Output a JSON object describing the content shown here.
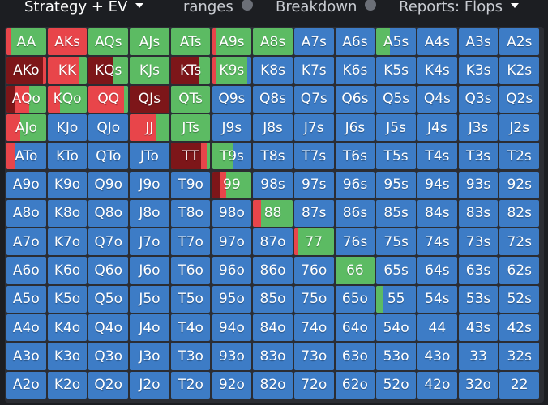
{
  "tabs": [
    {
      "label": "Strategy + EV",
      "active": true,
      "caret": true,
      "info": false
    },
    {
      "label": "ranges",
      "active": false,
      "caret": false,
      "info": true
    },
    {
      "label": "Breakdown",
      "active": false,
      "caret": false,
      "info": true
    },
    {
      "label": "Reports: Flops",
      "active": false,
      "caret": true,
      "info": false
    }
  ],
  "colors": {
    "blue": "#3d7cc6",
    "red": "#e8454a",
    "dark_red": "#7d1619",
    "green": "#5cbb63"
  },
  "grid": [
    [
      "AA",
      "AKs",
      "AQs",
      "AJs",
      "ATs",
      "A9s",
      "A8s",
      "A7s",
      "A6s",
      "A5s",
      "A4s",
      "A3s",
      "A2s"
    ],
    [
      "AKo",
      "KK",
      "KQs",
      "KJs",
      "KTs",
      "K9s",
      "K8s",
      "K7s",
      "K6s",
      "K5s",
      "K4s",
      "K3s",
      "K2s"
    ],
    [
      "AQo",
      "KQo",
      "QQ",
      "QJs",
      "QTs",
      "Q9s",
      "Q8s",
      "Q7s",
      "Q6s",
      "Q5s",
      "Q4s",
      "Q3s",
      "Q2s"
    ],
    [
      "AJo",
      "KJo",
      "QJo",
      "JJ",
      "JTs",
      "J9s",
      "J8s",
      "J7s",
      "J6s",
      "J5s",
      "J4s",
      "J3s",
      "J2s"
    ],
    [
      "ATo",
      "KTo",
      "QTo",
      "JTo",
      "TT",
      "T9s",
      "T8s",
      "T7s",
      "T6s",
      "T5s",
      "T4s",
      "T3s",
      "T2s"
    ],
    [
      "A9o",
      "K9o",
      "Q9o",
      "J9o",
      "T9o",
      "99",
      "98s",
      "97s",
      "96s",
      "95s",
      "94s",
      "93s",
      "92s"
    ],
    [
      "A8o",
      "K8o",
      "Q8o",
      "J8o",
      "T8o",
      "98o",
      "88",
      "87s",
      "86s",
      "85s",
      "84s",
      "83s",
      "82s"
    ],
    [
      "A7o",
      "K7o",
      "Q7o",
      "J7o",
      "T7o",
      "97o",
      "87o",
      "77",
      "76s",
      "75s",
      "74s",
      "73s",
      "72s"
    ],
    [
      "A6o",
      "K6o",
      "Q6o",
      "J6o",
      "T6o",
      "96o",
      "86o",
      "76o",
      "66",
      "65s",
      "64s",
      "63s",
      "62s"
    ],
    [
      "A5o",
      "K5o",
      "Q5o",
      "J5o",
      "T5o",
      "95o",
      "85o",
      "75o",
      "65o",
      "55",
      "54s",
      "53s",
      "52s"
    ],
    [
      "A4o",
      "K4o",
      "Q4o",
      "J4o",
      "T4o",
      "94o",
      "84o",
      "74o",
      "64o",
      "54o",
      "44",
      "43s",
      "42s"
    ],
    [
      "A3o",
      "K3o",
      "Q3o",
      "J3o",
      "T3o",
      "93o",
      "83o",
      "73o",
      "63o",
      "53o",
      "43o",
      "33",
      "32s"
    ],
    [
      "A2o",
      "K2o",
      "Q2o",
      "J2o",
      "T2o",
      "92o",
      "82o",
      "72o",
      "62o",
      "52o",
      "42o",
      "32o",
      "22"
    ]
  ],
  "mixes": {
    "AA": [
      [
        "red",
        0.12
      ],
      [
        "green",
        0.88
      ]
    ],
    "AKs": [
      [
        "red",
        1.0
      ]
    ],
    "AQs": [
      [
        "green",
        1.0
      ]
    ],
    "AJs": [
      [
        "green",
        1.0
      ]
    ],
    "ATs": [
      [
        "green",
        1.0
      ]
    ],
    "A9s": [
      [
        "red",
        0.12
      ],
      [
        "green",
        0.88
      ]
    ],
    "A8s": [
      [
        "green",
        1.0
      ]
    ],
    "A5s": [
      [
        "green",
        0.35
      ],
      [
        "blue",
        0.65
      ]
    ],
    "AKo": [
      [
        "dark_red",
        0.92
      ],
      [
        "red",
        0.08
      ]
    ],
    "KK": [
      [
        "red",
        0.78
      ],
      [
        "green",
        0.22
      ]
    ],
    "KQs": [
      [
        "dark_red",
        0.6
      ],
      [
        "green",
        0.4
      ]
    ],
    "KJs": [
      [
        "green",
        1.0
      ]
    ],
    "KTs": [
      [
        "dark_red",
        0.7
      ],
      [
        "green",
        0.3
      ]
    ],
    "K9s": [
      [
        "red",
        0.1
      ],
      [
        "green",
        0.8
      ],
      [
        "blue",
        0.1
      ]
    ],
    "AQo": [
      [
        "dark_red",
        0.22
      ],
      [
        "red",
        0.36
      ],
      [
        "green",
        0.42
      ]
    ],
    "KQo": [
      [
        "red",
        0.32
      ],
      [
        "green",
        0.68
      ]
    ],
    "QQ": [
      [
        "red",
        0.9
      ],
      [
        "green",
        0.1
      ]
    ],
    "QJs": [
      [
        "dark_red",
        1.0
      ]
    ],
    "QTs": [
      [
        "green",
        1.0
      ]
    ],
    "AJo": [
      [
        "red",
        0.35
      ],
      [
        "green",
        0.65
      ]
    ],
    "JJ": [
      [
        "red",
        0.65
      ],
      [
        "green",
        0.35
      ]
    ],
    "JTs": [
      [
        "green",
        1.0
      ]
    ],
    "ATo": [
      [
        "red",
        0.2
      ],
      [
        "blue",
        0.8
      ]
    ],
    "TT": [
      [
        "dark_red",
        0.76
      ],
      [
        "red",
        0.14
      ],
      [
        "green",
        0.1
      ]
    ],
    "T9s": [
      [
        "green",
        0.55
      ],
      [
        "blue",
        0.45
      ]
    ],
    "99": [
      [
        "dark_red",
        0.2
      ],
      [
        "red",
        0.15
      ],
      [
        "green",
        0.65
      ]
    ],
    "88": [
      [
        "red",
        0.2
      ],
      [
        "green",
        0.8
      ]
    ],
    "77": [
      [
        "red",
        0.08
      ],
      [
        "green",
        0.92
      ]
    ],
    "66": [
      [
        "green",
        1.0
      ]
    ],
    "55": [
      [
        "green",
        0.15
      ],
      [
        "blue",
        0.85
      ]
    ]
  }
}
